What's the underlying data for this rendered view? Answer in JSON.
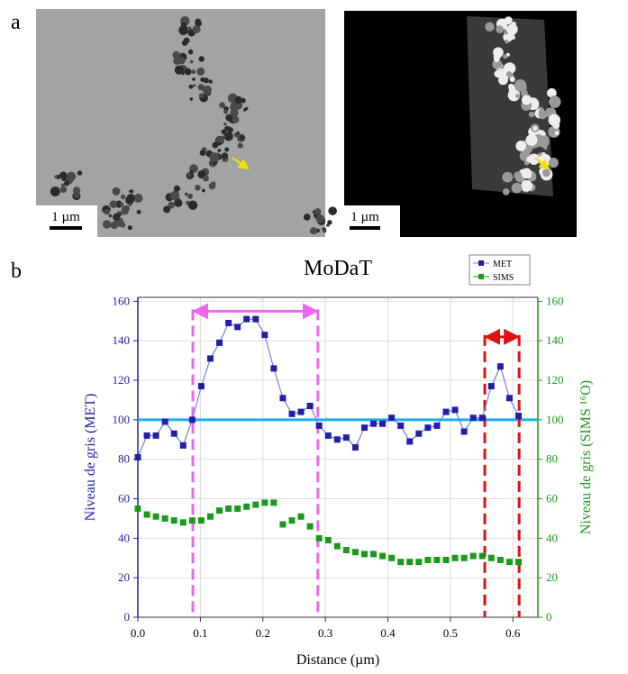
{
  "panel_labels": [
    "a",
    "b"
  ],
  "scale_bars": [
    "1 µm",
    "1 µm"
  ],
  "chart_data": {
    "type": "line",
    "title": "MoDaT",
    "x_label": "Distance (µm)",
    "y_label": "Niveau de gris (MET)",
    "y2_label": "Niveau de gris (SIMS ¹⁶O)",
    "xlim": [
      0,
      0.64
    ],
    "ylim": [
      0,
      162
    ],
    "y2lim": [
      0,
      162
    ],
    "xticks": [
      {
        "value": 0,
        "label": "0.0"
      },
      0.1,
      0.2,
      0.3,
      0.4,
      0.5,
      0.6
    ],
    "yticks": [
      0,
      20,
      40,
      60,
      80,
      100,
      120,
      140,
      160
    ],
    "y2ticks": [
      0,
      20,
      40,
      60,
      80,
      100,
      120,
      140,
      160
    ],
    "grid": true,
    "x": [
      0,
      0.0145,
      0.029,
      0.0435,
      0.058,
      0.0725,
      0.087,
      0.1015,
      0.116,
      0.1305,
      0.145,
      0.1595,
      0.174,
      0.1885,
      0.203,
      0.2175,
      0.232,
      0.2465,
      0.261,
      0.2755,
      0.29,
      0.3045,
      0.319,
      0.3335,
      0.348,
      0.3625,
      0.377,
      0.3915,
      0.406,
      0.4205,
      0.435,
      0.4495,
      0.464,
      0.4785,
      0.493,
      0.5075,
      0.522,
      0.5365,
      0.551,
      0.5655,
      0.58,
      0.5945,
      0.609
    ],
    "series": [
      {
        "name": "MET",
        "color": "#1f1fa8",
        "line_color": "#6f7fe0",
        "values": [
          81,
          92,
          92,
          99,
          93,
          87,
          100,
          117,
          131,
          139,
          149,
          147,
          151,
          151,
          143,
          126,
          111,
          103,
          104,
          107,
          97,
          92,
          90,
          91,
          86,
          96,
          98,
          98,
          101,
          97,
          89,
          93,
          96,
          97,
          104,
          105,
          94,
          101,
          101,
          117,
          127,
          111,
          102
        ]
      },
      {
        "name": "SIMS",
        "color": "#1a9a1a",
        "axis": "y2",
        "values": [
          55,
          52,
          51,
          50,
          49,
          48,
          49,
          49,
          51,
          54,
          55,
          55,
          56,
          57,
          58,
          58,
          47,
          49,
          51,
          46,
          40,
          39,
          36,
          34,
          33,
          32,
          32,
          31,
          30,
          28,
          28,
          28,
          29,
          29,
          29,
          30,
          30,
          31,
          31,
          30,
          29,
          28,
          28
        ]
      }
    ],
    "hline": {
      "value": 100,
      "color": "#19b0ec"
    },
    "spans": [
      {
        "x": [
          0.088,
          0.288
        ],
        "y": 155,
        "color": "#ee66ee"
      },
      {
        "x": [
          0.555,
          0.61
        ],
        "y": 142,
        "color": "#dd1111"
      }
    ],
    "legend": "top-right"
  }
}
